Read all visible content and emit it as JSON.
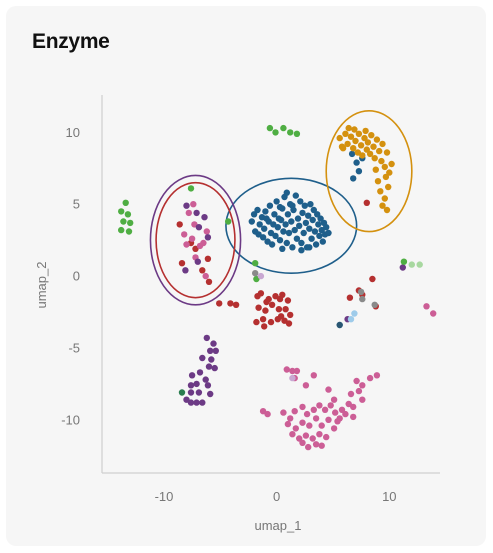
{
  "chart_data": {
    "type": "scatter",
    "title": "Enzyme",
    "xlabel": "umap_1",
    "ylabel": "umap_2",
    "xlim": [
      -15.5,
      14.5
    ],
    "ylim": [
      -13.7,
      12.6
    ],
    "xticks": [
      -10,
      0,
      10
    ],
    "yticks": [
      10,
      5,
      0,
      -5,
      -10
    ],
    "grid": false,
    "legend": "none",
    "series": [
      {
        "color": "#1f5f8b",
        "points": [
          [
            -2.2,
            3.8
          ],
          [
            -2.0,
            4.3
          ],
          [
            -1.9,
            3.1
          ],
          [
            -1.7,
            4.6
          ],
          [
            -1.5,
            3.6
          ],
          [
            -1.3,
            4.1
          ],
          [
            -1.2,
            2.7
          ],
          [
            -1.1,
            3.3
          ],
          [
            -1.0,
            4.5
          ],
          [
            -0.8,
            2.4
          ],
          [
            -0.7,
            3.8
          ],
          [
            -0.6,
            4.9
          ],
          [
            -0.5,
            3.0
          ],
          [
            -0.4,
            2.2
          ],
          [
            -0.3,
            3.6
          ],
          [
            -0.2,
            4.3
          ],
          [
            -0.1,
            2.8
          ],
          [
            0.0,
            5.2
          ],
          [
            0.1,
            3.4
          ],
          [
            0.2,
            4.0
          ],
          [
            0.3,
            2.5
          ],
          [
            0.4,
            3.9
          ],
          [
            0.5,
            4.7
          ],
          [
            0.5,
            1.9
          ],
          [
            0.6,
            3.1
          ],
          [
            0.7,
            5.5
          ],
          [
            0.8,
            3.6
          ],
          [
            0.9,
            2.3
          ],
          [
            1.0,
            4.3
          ],
          [
            1.1,
            3.0
          ],
          [
            1.2,
            5.0
          ],
          [
            1.3,
            3.8
          ],
          [
            1.4,
            2.0
          ],
          [
            1.5,
            4.6
          ],
          [
            1.6,
            3.2
          ],
          [
            1.7,
            5.6
          ],
          [
            1.8,
            2.6
          ],
          [
            1.9,
            4.0
          ],
          [
            2.0,
            3.5
          ],
          [
            2.1,
            5.2
          ],
          [
            2.2,
            2.3
          ],
          [
            2.3,
            4.4
          ],
          [
            2.4,
            3.0
          ],
          [
            2.5,
            4.9
          ],
          [
            2.6,
            3.7
          ],
          [
            2.7,
            2.0
          ],
          [
            2.8,
            4.2
          ],
          [
            2.9,
            3.3
          ],
          [
            3.0,
            5.0
          ],
          [
            3.1,
            2.6
          ],
          [
            3.2,
            3.9
          ],
          [
            3.3,
            4.6
          ],
          [
            3.4,
            3.1
          ],
          [
            3.5,
            2.2
          ],
          [
            3.6,
            4.3
          ],
          [
            3.7,
            3.6
          ],
          [
            3.8,
            2.8
          ],
          [
            3.9,
            4.0
          ],
          [
            4.0,
            3.2
          ],
          [
            4.1,
            2.4
          ],
          [
            4.2,
            3.7
          ],
          [
            4.3,
            2.9
          ],
          [
            4.4,
            3.4
          ],
          [
            4.6,
            3.0
          ],
          [
            -1.6,
            2.9
          ],
          [
            0.9,
            5.8
          ],
          [
            2.2,
            1.8
          ],
          [
            1.4,
            4.9
          ],
          [
            0.3,
            4.8
          ],
          [
            2.9,
            2.0
          ],
          [
            -0.9,
            4.0
          ],
          [
            6.7,
            8.5
          ],
          [
            7.1,
            7.9
          ],
          [
            7.6,
            8.2
          ],
          [
            7.3,
            7.3
          ],
          [
            6.8,
            6.8
          ]
        ]
      },
      {
        "color": "#d4910f",
        "points": [
          [
            5.6,
            9.6
          ],
          [
            5.9,
            8.9
          ],
          [
            6.1,
            9.9
          ],
          [
            6.3,
            9.2
          ],
          [
            6.6,
            9.7
          ],
          [
            6.8,
            8.9
          ],
          [
            7.0,
            9.4
          ],
          [
            7.2,
            8.6
          ],
          [
            7.3,
            9.9
          ],
          [
            7.5,
            9.1
          ],
          [
            7.6,
            8.4
          ],
          [
            7.8,
            9.6
          ],
          [
            8.0,
            8.8
          ],
          [
            8.1,
            9.3
          ],
          [
            8.3,
            8.5
          ],
          [
            8.4,
            9.8
          ],
          [
            8.6,
            9.0
          ],
          [
            8.7,
            8.2
          ],
          [
            8.9,
            9.5
          ],
          [
            9.1,
            8.7
          ],
          [
            9.3,
            8.0
          ],
          [
            9.4,
            9.2
          ],
          [
            9.6,
            7.6
          ],
          [
            9.8,
            8.6
          ],
          [
            10.0,
            7.2
          ],
          [
            8.8,
            7.4
          ],
          [
            9.0,
            6.6
          ],
          [
            9.7,
            6.9
          ],
          [
            9.2,
            5.9
          ],
          [
            9.6,
            5.4
          ],
          [
            9.9,
            6.2
          ],
          [
            9.4,
            4.9
          ],
          [
            9.8,
            4.6
          ],
          [
            6.4,
            10.3
          ],
          [
            7.9,
            10.1
          ],
          [
            10.2,
            7.8
          ],
          [
            5.8,
            9.0
          ],
          [
            6.9,
            10.2
          ]
        ]
      },
      {
        "color": "#b53030",
        "points": [
          [
            8.0,
            5.1
          ],
          [
            -8.6,
            3.6
          ],
          [
            -7.6,
            2.3
          ],
          [
            -8.4,
            0.9
          ],
          [
            -7.2,
            1.9
          ],
          [
            -6.1,
            1.2
          ],
          [
            -6.6,
            0.4
          ],
          [
            -6.0,
            -0.4
          ],
          [
            -5.1,
            -1.9
          ],
          [
            -4.1,
            -1.9
          ],
          [
            -3.6,
            -2.0
          ],
          [
            -1.7,
            -1.4
          ],
          [
            -1.4,
            -1.2
          ],
          [
            -0.7,
            -1.6
          ],
          [
            -0.1,
            -1.4
          ],
          [
            0.3,
            -1.6
          ],
          [
            1.0,
            -1.7
          ],
          [
            -1.6,
            -2.2
          ],
          [
            -1.0,
            -2.4
          ],
          [
            -0.4,
            -2.0
          ],
          [
            0.2,
            -2.3
          ],
          [
            0.8,
            -2.3
          ],
          [
            1.2,
            -2.7
          ],
          [
            -1.8,
            -3.2
          ],
          [
            -1.2,
            -3.0
          ],
          [
            -0.5,
            -3.2
          ],
          [
            0.1,
            -3.0
          ],
          [
            0.7,
            -3.1
          ],
          [
            1.1,
            -3.3
          ],
          [
            -0.9,
            -1.8
          ],
          [
            0.5,
            -1.3
          ],
          [
            -1.1,
            -3.5
          ],
          [
            0.4,
            -2.8
          ],
          [
            6.5,
            -1.5
          ],
          [
            7.3,
            -1.0
          ],
          [
            7.6,
            -1.3
          ],
          [
            8.5,
            -0.2
          ],
          [
            8.8,
            -2.1
          ]
        ]
      },
      {
        "color": "#cc5e96",
        "points": [
          [
            -7.8,
            4.4
          ],
          [
            -8.2,
            2.9
          ],
          [
            -7.3,
            3.6
          ],
          [
            -7.5,
            2.6
          ],
          [
            -6.8,
            2.1
          ],
          [
            -6.2,
            3.1
          ],
          [
            -6.5,
            2.3
          ],
          [
            -7.2,
            1.3
          ],
          [
            -8.0,
            2.2
          ],
          [
            -6.3,
            0.0
          ],
          [
            -7.4,
            5.0
          ],
          [
            3.3,
            -6.9
          ],
          [
            1.4,
            -6.6
          ],
          [
            0.9,
            -6.5
          ],
          [
            1.8,
            -6.6
          ],
          [
            1.6,
            -7.1
          ],
          [
            2.6,
            -7.6
          ],
          [
            4.6,
            -7.9
          ],
          [
            5.1,
            -8.6
          ],
          [
            6.6,
            -8.2
          ],
          [
            7.1,
            -7.3
          ],
          [
            7.6,
            -7.6
          ],
          [
            8.3,
            -7.1
          ],
          [
            8.9,
            -6.9
          ],
          [
            7.3,
            -8.0
          ],
          [
            6.4,
            -8.9
          ],
          [
            6.8,
            -9.1
          ],
          [
            7.6,
            -8.6
          ],
          [
            5.8,
            -9.3
          ],
          [
            6.1,
            -9.6
          ],
          [
            6.8,
            -9.8
          ],
          [
            -1.2,
            -9.4
          ],
          [
            -0.8,
            -9.6
          ],
          [
            0.6,
            -9.5
          ],
          [
            1.2,
            -9.9
          ],
          [
            1.6,
            -9.4
          ],
          [
            2.3,
            -9.1
          ],
          [
            2.7,
            -9.6
          ],
          [
            3.3,
            -9.3
          ],
          [
            3.8,
            -9.0
          ],
          [
            4.3,
            -9.3
          ],
          [
            4.8,
            -9.0
          ],
          [
            5.2,
            -9.5
          ],
          [
            5.6,
            -9.9
          ],
          [
            1.0,
            -10.3
          ],
          [
            1.7,
            -10.6
          ],
          [
            2.3,
            -10.2
          ],
          [
            2.9,
            -10.4
          ],
          [
            3.5,
            -9.9
          ],
          [
            4.0,
            -10.4
          ],
          [
            4.6,
            -10.0
          ],
          [
            5.1,
            -10.6
          ],
          [
            5.4,
            -10.1
          ],
          [
            1.4,
            -11.0
          ],
          [
            2.0,
            -11.3
          ],
          [
            2.6,
            -11.1
          ],
          [
            3.2,
            -11.3
          ],
          [
            3.8,
            -11.0
          ],
          [
            4.4,
            -11.2
          ],
          [
            2.3,
            -11.6
          ],
          [
            3.5,
            -11.7
          ],
          [
            2.8,
            -11.9
          ],
          [
            4.0,
            -11.8
          ],
          [
            13.3,
            -2.1
          ],
          [
            13.9,
            -2.6
          ]
        ]
      },
      {
        "color": "#6c3a85",
        "points": [
          [
            -8.0,
            4.9
          ],
          [
            -7.1,
            4.4
          ],
          [
            -6.4,
            4.1
          ],
          [
            -6.9,
            3.4
          ],
          [
            -6.1,
            2.7
          ],
          [
            -7.0,
            1.0
          ],
          [
            -8.1,
            0.4
          ],
          [
            -6.2,
            -4.3
          ],
          [
            -5.6,
            -4.7
          ],
          [
            -5.9,
            -5.2
          ],
          [
            -5.4,
            -5.2
          ],
          [
            -5.8,
            -5.8
          ],
          [
            -6.6,
            -5.7
          ],
          [
            -6.0,
            -6.3
          ],
          [
            -5.5,
            -6.4
          ],
          [
            -7.5,
            -6.9
          ],
          [
            -6.8,
            -6.7
          ],
          [
            -6.3,
            -7.2
          ],
          [
            -7.6,
            -7.6
          ],
          [
            -7.1,
            -7.5
          ],
          [
            -6.1,
            -7.6
          ],
          [
            -7.6,
            -8.1
          ],
          [
            -6.9,
            -8.1
          ],
          [
            -8.0,
            -8.6
          ],
          [
            -7.1,
            -8.8
          ],
          [
            -7.6,
            -8.8
          ],
          [
            -6.6,
            -8.8
          ],
          [
            -5.9,
            -8.2
          ],
          [
            6.3,
            -3.0
          ],
          [
            11.2,
            0.6
          ]
        ]
      },
      {
        "color": "#4fae43",
        "points": [
          [
            -13.4,
            5.1
          ],
          [
            -13.8,
            4.5
          ],
          [
            -13.2,
            4.3
          ],
          [
            -13.6,
            3.8
          ],
          [
            -13.0,
            3.7
          ],
          [
            -13.8,
            3.2
          ],
          [
            -13.1,
            3.1
          ],
          [
            -7.6,
            6.1
          ],
          [
            -4.3,
            3.8
          ],
          [
            -1.9,
            0.9
          ],
          [
            -0.6,
            10.3
          ],
          [
            -0.1,
            10.0
          ],
          [
            0.6,
            10.3
          ],
          [
            1.2,
            10.0
          ],
          [
            1.8,
            9.9
          ],
          [
            11.3,
            1.0
          ],
          [
            -1.8,
            -0.2
          ]
        ]
      },
      {
        "color": "#2a7d4f",
        "points": [
          [
            -8.4,
            -8.1
          ]
        ]
      },
      {
        "color": "#a8d8a0",
        "points": [
          [
            12.0,
            0.8
          ],
          [
            12.7,
            0.8
          ]
        ]
      },
      {
        "color": "#8a8a8a",
        "points": [
          [
            -1.9,
            0.2
          ],
          [
            7.5,
            -1.1
          ],
          [
            8.7,
            -2.0
          ],
          [
            7.6,
            -1.6
          ]
        ]
      },
      {
        "color": "#c9a8d2",
        "points": [
          [
            -1.4,
            0.0
          ],
          [
            1.4,
            -7.1
          ]
        ]
      },
      {
        "color": "#9ecbea",
        "points": [
          [
            6.6,
            -3.0
          ],
          [
            5.6,
            -3.4
          ],
          [
            6.9,
            -2.6
          ]
        ]
      },
      {
        "color": "#2a5672",
        "points": [
          [
            5.6,
            -3.4
          ]
        ]
      }
    ],
    "outlines": [
      {
        "color": "#1f5f8b",
        "cx": 1.3,
        "cy": 3.5,
        "rx": 5.8,
        "ry": 3.3
      },
      {
        "color": "#d4910f",
        "cx": 8.2,
        "cy": 7.3,
        "rx": 3.8,
        "ry": 4.2
      },
      {
        "color": "#6c3a85",
        "cx": -7.2,
        "cy": 2.5,
        "rx": 4.0,
        "ry": 4.5
      },
      {
        "color": "#b53030",
        "cx": -7.2,
        "cy": 2.5,
        "rx": 3.5,
        "ry": 4.0
      }
    ]
  }
}
